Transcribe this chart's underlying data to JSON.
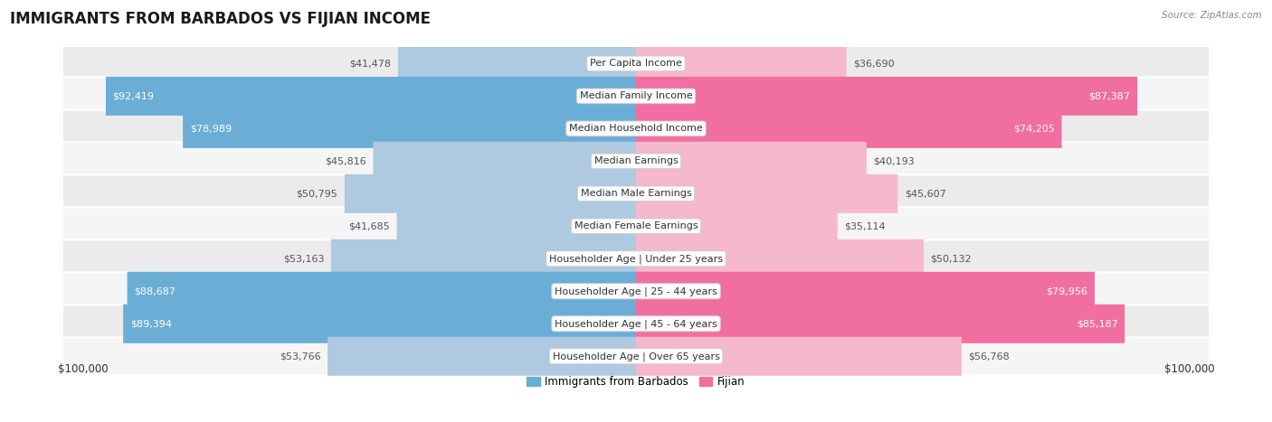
{
  "title": "IMMIGRANTS FROM BARBADOS VS FIJIAN INCOME",
  "source": "Source: ZipAtlas.com",
  "categories": [
    "Per Capita Income",
    "Median Family Income",
    "Median Household Income",
    "Median Earnings",
    "Median Male Earnings",
    "Median Female Earnings",
    "Householder Age | Under 25 years",
    "Householder Age | 25 - 44 years",
    "Householder Age | 45 - 64 years",
    "Householder Age | Over 65 years"
  ],
  "barbados_values": [
    41478,
    92419,
    78989,
    45816,
    50795,
    41685,
    53163,
    88687,
    89394,
    53766
  ],
  "fijian_values": [
    36690,
    87387,
    74205,
    40193,
    45607,
    35114,
    50132,
    79956,
    85187,
    56768
  ],
  "max_value": 100000,
  "barbados_color_dark": "#6aaed6",
  "barbados_color_light": "#aec9e0",
  "fijian_color_dark": "#f06fa0",
  "fijian_color_light": "#f5b8cc",
  "label_color_dark": "#ffffff",
  "label_color_light": "#555555",
  "row_bg_even": "#ebebeb",
  "row_bg_odd": "#f5f5f5",
  "legend_barbados": "Immigrants from Barbados",
  "legend_fijian": "Fijian",
  "xlabel_left": "$100,000",
  "xlabel_right": "$100,000",
  "title_fontsize": 12,
  "bar_label_fontsize": 8,
  "category_fontsize": 8,
  "legend_fontsize": 8.5,
  "source_fontsize": 7.5,
  "dark_threshold": 0.6
}
